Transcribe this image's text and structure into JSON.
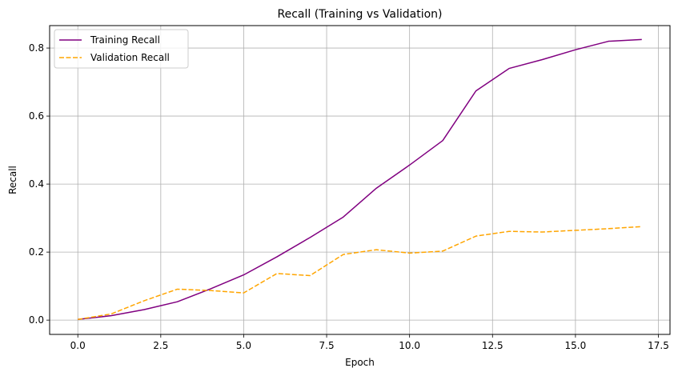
{
  "chart_data": {
    "type": "line",
    "title": "Recall (Training vs Validation)",
    "xlabel": "Epoch",
    "ylabel": "Recall",
    "xlim": [
      -0.85,
      17.85
    ],
    "ylim": [
      -0.042,
      0.866
    ],
    "x_ticks": [
      0.0,
      2.5,
      5.0,
      7.5,
      10.0,
      12.5,
      15.0,
      17.5
    ],
    "x_tick_labels": [
      "0.0",
      "2.5",
      "5.0",
      "7.5",
      "10.0",
      "12.5",
      "15.0",
      "17.5"
    ],
    "y_ticks": [
      0.0,
      0.2,
      0.4,
      0.6,
      0.8
    ],
    "y_tick_labels": [
      "0.0",
      "0.2",
      "0.4",
      "0.6",
      "0.8"
    ],
    "grid": true,
    "legend_position": "top-left",
    "x": [
      0,
      1,
      2,
      3,
      4,
      5,
      6,
      7,
      8,
      9,
      10,
      11,
      12,
      13,
      14,
      15,
      16,
      17
    ],
    "series": [
      {
        "name": "Training Recall",
        "color": "#800080",
        "dash": "solid",
        "values": [
          0.002,
          0.013,
          0.031,
          0.054,
          0.092,
          0.133,
          0.186,
          0.243,
          0.303,
          0.388,
          0.456,
          0.528,
          0.674,
          0.74,
          0.766,
          0.795,
          0.82,
          0.825
        ]
      },
      {
        "name": "Validation Recall",
        "color": "#FFA500",
        "dash": "dashed",
        "values": [
          0.002,
          0.018,
          0.057,
          0.091,
          0.087,
          0.08,
          0.137,
          0.131,
          0.193,
          0.207,
          0.197,
          0.203,
          0.247,
          0.261,
          0.259,
          0.264,
          0.269,
          0.275
        ]
      }
    ]
  }
}
